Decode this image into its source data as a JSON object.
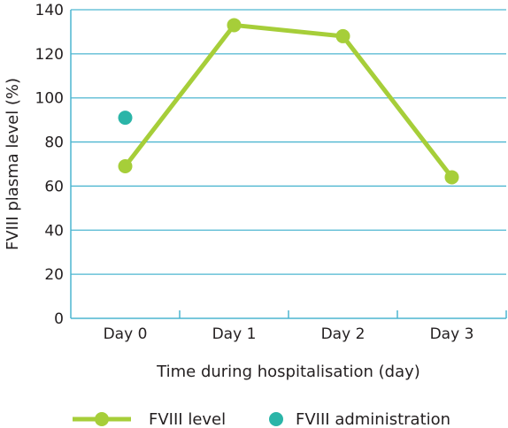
{
  "chart_data": {
    "type": "line",
    "title": "",
    "xlabel": "Time during hospitalisation (day)",
    "ylabel": "FVIII plasma level (%)",
    "categories": [
      "Day 0",
      "Day 1",
      "Day 2",
      "Day 3"
    ],
    "ylim": [
      0,
      140
    ],
    "yticks": [
      0,
      20,
      40,
      60,
      80,
      100,
      120,
      140
    ],
    "grid": true,
    "legend_position": "bottom",
    "series": [
      {
        "name": "FVIII level",
        "kind": "line",
        "color": "#a6ce39",
        "values": [
          69,
          133,
          128,
          64
        ]
      },
      {
        "name": "FVIII administration",
        "kind": "point",
        "color": "#2bb5a8",
        "points": [
          {
            "category": "Day 0",
            "y": 91
          }
        ]
      }
    ],
    "axis_color": "#4db6d0",
    "gridline_color": "#4db6d0"
  }
}
